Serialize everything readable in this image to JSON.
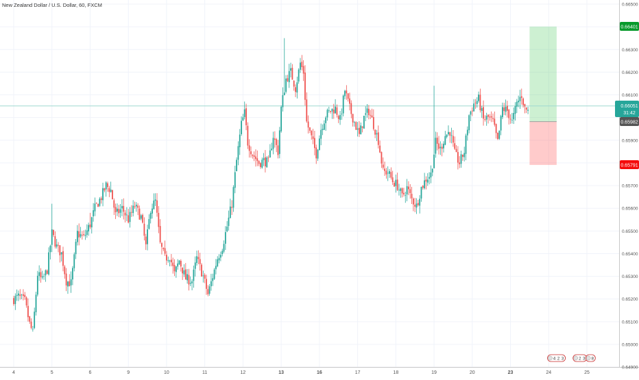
{
  "header": {
    "symbol_title": "New Zealand Dollar / U.S. Dollar, 60, FXCM"
  },
  "colors": {
    "up": "#26a69a",
    "down": "#ef5350",
    "grid": "#f0f3fa",
    "axis_text": "#555555",
    "current_price_line": "#9fd9d0",
    "profit_zone": "rgba(76, 201, 92, 0.28)",
    "loss_zone": "rgba(255, 110, 110, 0.36)",
    "target_badge": "#089a2c",
    "stop_badge": "#f40c0c",
    "current_badge": "#26a69a",
    "entry_badge": "#555555"
  },
  "price_badges": {
    "target": "0.66401",
    "current": "0.66051",
    "countdown": "31:42",
    "entry": "0.65982",
    "stop": "0.65791"
  },
  "chart_data": {
    "type": "candlestick",
    "title": "New Zealand Dollar / U.S. Dollar, 60, FXCM",
    "xlabel": "",
    "ylabel": "",
    "ylim": [
      0.6492,
      0.6652
    ],
    "grid": true,
    "y_ticks": [
      "0.64900",
      "0.65000",
      "0.65100",
      "0.65200",
      "0.65300",
      "0.65400",
      "0.65500",
      "0.65600",
      "0.65700",
      "0.65800",
      "0.65900",
      "0.66000",
      "0.66100",
      "0.66200",
      "0.66300",
      "0.66400",
      "0.66500"
    ],
    "x_ticks": [
      {
        "label": "4",
        "index": 0
      },
      {
        "label": "5",
        "index": 24
      },
      {
        "label": "6",
        "index": 48
      },
      {
        "label": "9",
        "index": 72
      },
      {
        "label": "10",
        "index": 96
      },
      {
        "label": "11",
        "index": 120
      },
      {
        "label": "12",
        "index": 144
      },
      {
        "label": "13",
        "index": 168
      },
      {
        "label": "16",
        "index": 192
      },
      {
        "label": "17",
        "index": 216
      },
      {
        "label": "18",
        "index": 240
      },
      {
        "label": "19",
        "index": 264
      },
      {
        "label": "20",
        "index": 288
      },
      {
        "label": "23",
        "index": 312
      },
      {
        "label": "24",
        "index": 336
      },
      {
        "label": "25",
        "index": 360
      }
    ],
    "anchors": [
      [
        0,
        0.652
      ],
      [
        3,
        0.6521
      ],
      [
        7,
        0.6519
      ],
      [
        10,
        0.6509
      ],
      [
        12,
        0.6505
      ],
      [
        15,
        0.6531
      ],
      [
        18,
        0.6528
      ],
      [
        21,
        0.6533
      ],
      [
        24,
        0.6549
      ],
      [
        27,
        0.6543
      ],
      [
        30,
        0.654
      ],
      [
        33,
        0.6528
      ],
      [
        36,
        0.6527
      ],
      [
        40,
        0.6549
      ],
      [
        44,
        0.6547
      ],
      [
        48,
        0.6553
      ],
      [
        51,
        0.656
      ],
      [
        55,
        0.6565
      ],
      [
        58,
        0.657
      ],
      [
        61,
        0.6568
      ],
      [
        64,
        0.6557
      ],
      [
        68,
        0.656
      ],
      [
        72,
        0.6555
      ],
      [
        76,
        0.6561
      ],
      [
        80,
        0.6556
      ],
      [
        83,
        0.6543
      ],
      [
        86,
        0.656
      ],
      [
        89,
        0.6563
      ],
      [
        92,
        0.6544
      ],
      [
        95,
        0.6538
      ],
      [
        98,
        0.6539
      ],
      [
        101,
        0.6531
      ],
      [
        104,
        0.6537
      ],
      [
        108,
        0.6529
      ],
      [
        112,
        0.6528
      ],
      [
        115,
        0.6538
      ],
      [
        119,
        0.653
      ],
      [
        122,
        0.6522
      ],
      [
        125,
        0.653
      ],
      [
        128,
        0.6538
      ],
      [
        131,
        0.6543
      ],
      [
        134,
        0.6552
      ],
      [
        137,
        0.6562
      ],
      [
        140,
        0.6581
      ],
      [
        143,
        0.6597
      ],
      [
        145,
        0.6602
      ],
      [
        147,
        0.6589
      ],
      [
        150,
        0.6584
      ],
      [
        154,
        0.658
      ],
      [
        157,
        0.6581
      ],
      [
        160,
        0.658
      ],
      [
        163,
        0.6592
      ],
      [
        166,
        0.6585
      ],
      [
        168,
        0.6604
      ],
      [
        171,
        0.6617
      ],
      [
        174,
        0.662
      ],
      [
        177,
        0.6613
      ],
      [
        180,
        0.6624
      ],
      [
        182,
        0.662
      ],
      [
        184,
        0.6598
      ],
      [
        187,
        0.6591
      ],
      [
        190,
        0.6584
      ],
      [
        193,
        0.6595
      ],
      [
        196,
        0.6601
      ],
      [
        199,
        0.6603
      ],
      [
        202,
        0.6604
      ],
      [
        205,
        0.6599
      ],
      [
        208,
        0.6612
      ],
      [
        211,
        0.6604
      ],
      [
        214,
        0.6598
      ],
      [
        217,
        0.6592
      ],
      [
        220,
        0.66
      ],
      [
        223,
        0.6603
      ],
      [
        226,
        0.6597
      ],
      [
        229,
        0.659
      ],
      [
        232,
        0.6576
      ],
      [
        235,
        0.6576
      ],
      [
        238,
        0.6572
      ],
      [
        241,
        0.657
      ],
      [
        244,
        0.6565
      ],
      [
        247,
        0.6569
      ],
      [
        250,
        0.6564
      ],
      [
        253,
        0.6561
      ],
      [
        256,
        0.6569
      ],
      [
        259,
        0.6573
      ],
      [
        262,
        0.6575
      ],
      [
        265,
        0.6589
      ],
      [
        268,
        0.6586
      ],
      [
        271,
        0.6592
      ],
      [
        274,
        0.6594
      ],
      [
        277,
        0.6584
      ],
      [
        280,
        0.658
      ],
      [
        283,
        0.6585
      ],
      [
        286,
        0.6601
      ],
      [
        289,
        0.6606
      ],
      [
        292,
        0.6608
      ],
      [
        295,
        0.6599
      ],
      [
        298,
        0.66
      ],
      [
        301,
        0.6598
      ],
      [
        304,
        0.6589
      ],
      [
        307,
        0.6604
      ],
      [
        310,
        0.6603
      ],
      [
        313,
        0.6598
      ],
      [
        316,
        0.6606
      ],
      [
        319,
        0.661
      ],
      [
        321,
        0.6604
      ],
      [
        323,
        0.6603
      ]
    ],
    "position": {
      "type": "long",
      "entry": 0.65982,
      "target": 0.66401,
      "stop": 0.65791,
      "start_index": 324,
      "end_index": 341
    },
    "current_price": 0.66051,
    "events": [
      {
        "index": 337,
        "labels": [
          "4",
          "2",
          "3"
        ]
      },
      {
        "index": 353,
        "labels": [
          "2",
          "3"
        ]
      },
      {
        "index": 361,
        "labels": [
          "8"
        ]
      }
    ]
  }
}
